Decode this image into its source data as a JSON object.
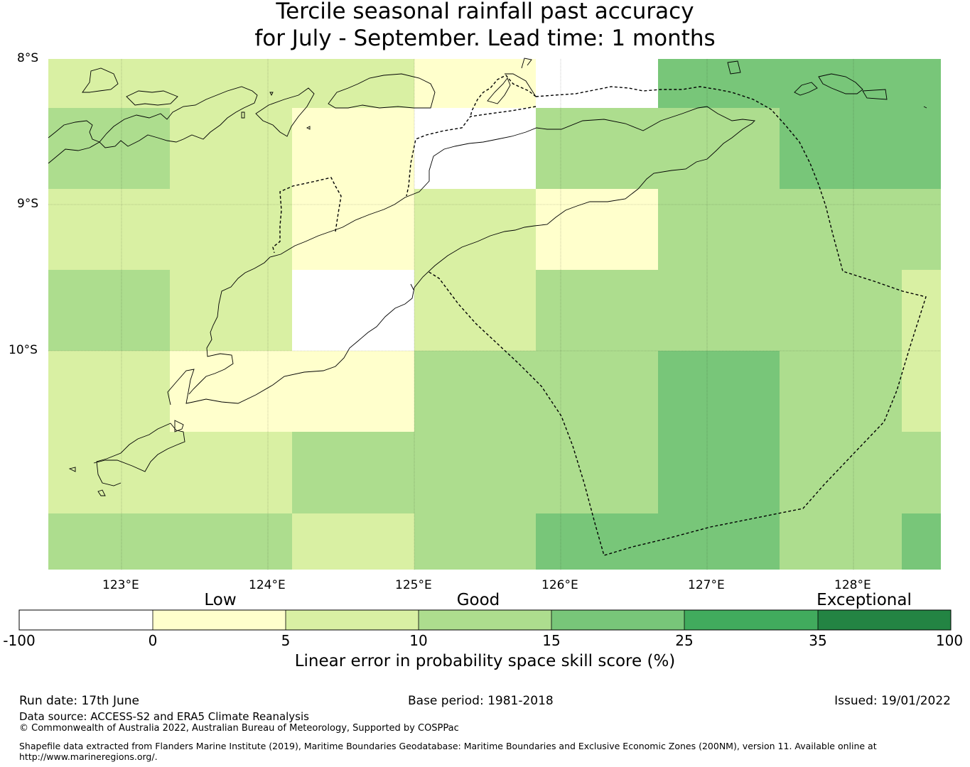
{
  "title": {
    "line1": "Tercile seasonal rainfall past accuracy",
    "line2": "for July - September. Lead time: 1 months"
  },
  "map": {
    "lat_labels": [
      "8°S",
      "9°S",
      "10°S"
    ],
    "lon_labels": [
      "123°E",
      "124°E",
      "125°E",
      "126°E",
      "127°E",
      "128°E"
    ],
    "cell_colors": {
      "white": "#ffffff",
      "low": "#ffffcc",
      "good_low": "#d9f0a3",
      "good": "#addd8e",
      "good_high": "#78c679"
    }
  },
  "colorbar": {
    "category_labels": [
      "Low",
      "Good",
      "Exceptional"
    ],
    "ticks": [
      "-100",
      "0",
      "5",
      "10",
      "15",
      "25",
      "35",
      "100"
    ],
    "colors": [
      "#ffffff",
      "#ffffcc",
      "#d9f0a3",
      "#addd8e",
      "#78c679",
      "#41ab5d",
      "#238443"
    ],
    "label": "Linear error in probability space skill score (%)"
  },
  "footer": {
    "run_date": "Run date: 17th June",
    "base_period": "Base period: 1981-2018",
    "issued": "Issued: 19/01/2022",
    "data_source": "Data source: ACCESS-S2 and ERA5 Climate Reanalysis",
    "copyright": "© Commonwealth of Australia 2022, Australian Bureau of Meteorology, Supported by COSPPac",
    "shapefile_line1": "Shapefile data extracted from Flanders Marine Institute (2019), Maritime Boundaries Geodatabase: Maritime Boundaries and Exclusive Economic Zones (200NM), version 11. Available online at",
    "shapefile_line2": "http://www.marineregions.org/."
  }
}
